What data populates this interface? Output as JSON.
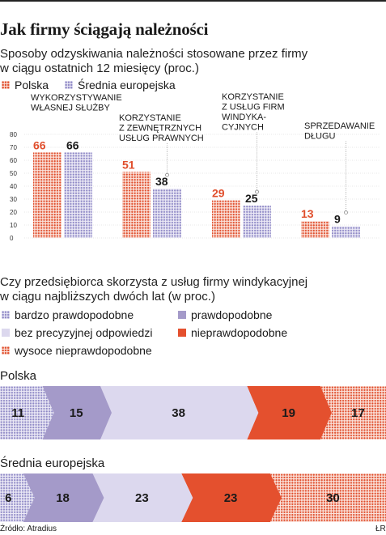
{
  "title": "Jak firmy ściągają należności",
  "chart1": {
    "subtitle_line1": "Sposoby odzyskiwania należności stosowane przez firmy",
    "subtitle_line2": "w ciągu ostatnich 12 miesięcy (proc.)",
    "legend": [
      "Polska",
      "Średnia europejska"
    ]
  },
  "chart2": {
    "subtitle_line1": "Czy przedsiębiorca skorzysta z usług firmy windykacyjnej",
    "subtitle_line2": "w ciągu najbliższych dwóch lat (w proc.)",
    "legend": [
      "bardzo prawdopodobne",
      "prawdopodobne",
      "bez precyzyjnej odpowiedzi",
      "nieprawdopodobne",
      "wysoce nieprawdopodobne"
    ]
  },
  "source": "Źródło: Atradius",
  "credit": "ŁR",
  "colors": {
    "poland_dots": "#e04e2c",
    "europe_dots": "#8f89c6",
    "purple": "#a49ac9",
    "lavender": "#dcd8ee",
    "red": "#e4502e"
  },
  "chart_data": [
    {
      "type": "bar",
      "ylim": [
        0,
        80
      ],
      "yticks": [
        0,
        10,
        20,
        30,
        40,
        50,
        60,
        70,
        80
      ],
      "categories": [
        [
          "WYKORZYSTYWANIE",
          "WŁASNEJ SŁUŻBY"
        ],
        [
          "KORZYSTANIE",
          "Z ZEWNĘTRZNYCH",
          "USŁUG PRAWNYCH"
        ],
        [
          "KORZYSTANIE",
          "Z USŁUG FIRM",
          "WINDYKA-",
          "CYJNYCH"
        ],
        [
          "SPRZEDAWANIE",
          "DŁUGU"
        ]
      ],
      "series": [
        {
          "name": "Polska",
          "values": [
            66,
            51,
            29,
            13
          ]
        },
        {
          "name": "Średnia europejska",
          "values": [
            66,
            38,
            25,
            9
          ]
        }
      ]
    },
    {
      "type": "bar",
      "stacked": true,
      "orientation": "horizontal",
      "categories": [
        "Polska",
        "Średnia europejska"
      ],
      "series": [
        {
          "name": "bardzo prawdopodobne",
          "values": [
            11,
            6
          ]
        },
        {
          "name": "prawdopodobne",
          "values": [
            15,
            18
          ]
        },
        {
          "name": "bez precyzyjnej odpowiedzi",
          "values": [
            38,
            23
          ]
        },
        {
          "name": "nieprawdopodobne",
          "values": [
            19,
            23
          ]
        },
        {
          "name": "wysoce nieprawdopodobne",
          "values": [
            17,
            30
          ]
        }
      ]
    }
  ]
}
